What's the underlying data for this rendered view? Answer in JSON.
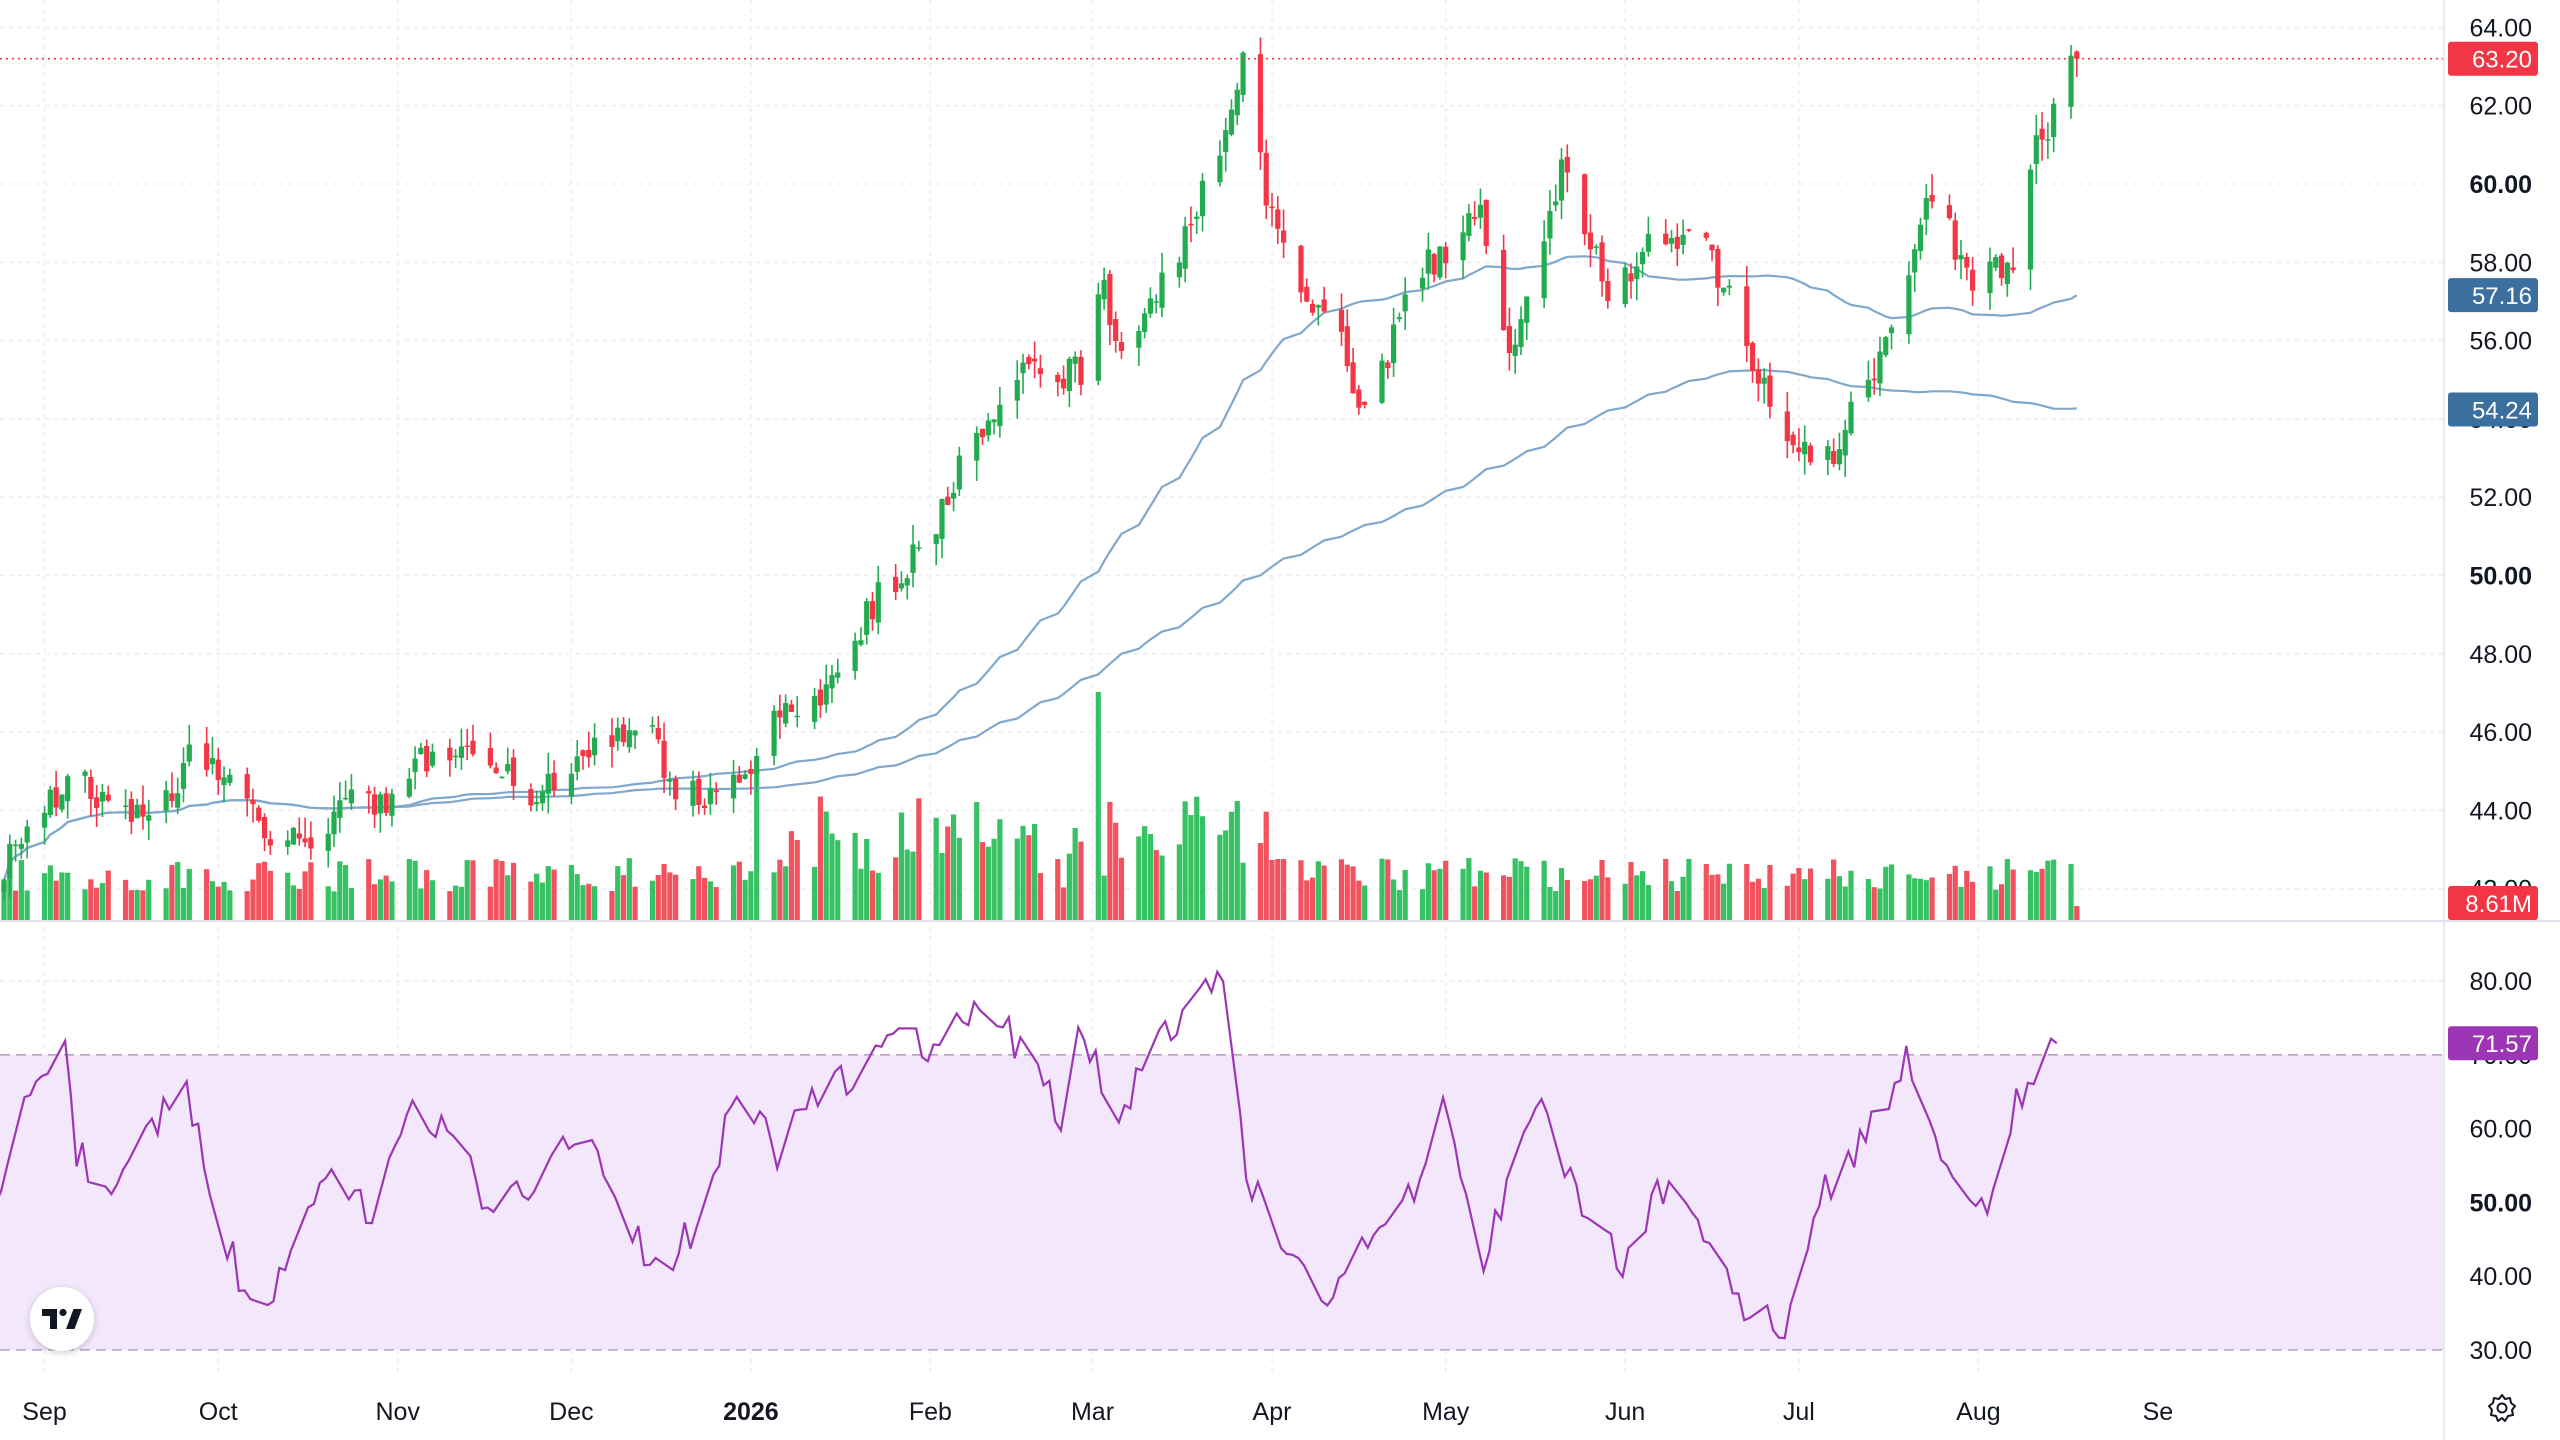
{
  "chart_data": {
    "type": "candlestick",
    "x_axis": {
      "labels": [
        "Sep",
        "Oct",
        "Nov",
        "Dec",
        "2026",
        "Feb",
        "Mar",
        "Apr",
        "May",
        "Jun",
        "Jul",
        "Aug",
        "Se"
      ],
      "bold_label": "2026"
    },
    "price_axis": {
      "ticks": [
        "64.00",
        "62.00",
        "60.00",
        "58.00",
        "56.00",
        "54.00",
        "52.00",
        "50.00",
        "48.00",
        "46.00",
        "44.00",
        "42.00"
      ],
      "bold_ticks": [
        "60.00",
        "50.00"
      ],
      "ylim": [
        41.2,
        64.7
      ],
      "grid": true
    },
    "price": {
      "last": 63.2,
      "last_label": "63.20",
      "description": "Daily OHLC candles, approx. one trading year (late Aug 2025 to mid Aug 2026). Close path anchors in data units:",
      "close_anchors": [
        [
          "2025-08-25",
          42.6
        ],
        [
          "2025-09-05",
          44.9
        ],
        [
          "2025-09-15",
          43.9
        ],
        [
          "2025-09-24",
          44.2
        ],
        [
          "2025-09-26",
          45.6
        ],
        [
          "2025-10-03",
          44.8
        ],
        [
          "2025-10-10",
          43.0
        ],
        [
          "2025-10-17",
          43.4
        ],
        [
          "2025-10-24",
          44.1
        ],
        [
          "2025-10-31",
          44.2
        ],
        [
          "2025-11-07",
          45.6
        ],
        [
          "2025-11-17",
          45.1
        ],
        [
          "2025-11-24",
          44.3
        ],
        [
          "2025-12-01",
          45.2
        ],
        [
          "2025-12-08",
          46.0
        ],
        [
          "2025-12-15",
          45.9
        ],
        [
          "2025-12-19",
          44.4
        ],
        [
          "2025-12-31",
          44.6
        ],
        [
          "2026-01-05",
          46.5
        ],
        [
          "2026-01-13",
          47.0
        ],
        [
          "2026-01-23",
          49.4
        ],
        [
          "2026-02-02",
          51.2
        ],
        [
          "2026-02-09",
          53.8
        ],
        [
          "2026-02-17",
          55.2
        ],
        [
          "2026-02-27",
          55.2
        ],
        [
          "2026-03-02",
          57.5
        ],
        [
          "2026-03-06",
          56.0
        ],
        [
          "2026-03-16",
          58.2
        ],
        [
          "2026-03-25",
          62.0
        ],
        [
          "2026-03-27",
          63.0
        ],
        [
          "2026-03-31",
          59.6
        ],
        [
          "2026-04-06",
          57.5
        ],
        [
          "2026-04-14",
          55.7
        ],
        [
          "2026-04-16",
          53.9
        ],
        [
          "2026-04-27",
          57.8
        ],
        [
          "2026-05-07",
          59.2
        ],
        [
          "2026-05-12",
          55.5
        ],
        [
          "2026-05-21",
          60.3
        ],
        [
          "2026-05-29",
          57.3
        ],
        [
          "2026-06-08",
          58.8
        ],
        [
          "2026-06-15",
          58.5
        ],
        [
          "2026-06-22",
          55.8
        ],
        [
          "2026-06-29",
          53.2
        ],
        [
          "2026-07-06",
          52.9
        ],
        [
          "2026-07-13",
          54.9
        ],
        [
          "2026-07-17",
          56.3
        ],
        [
          "2026-07-24",
          60.0
        ],
        [
          "2026-07-30",
          57.5
        ],
        [
          "2026-08-03",
          58.4
        ],
        [
          "2026-08-07",
          57.6
        ],
        [
          "2026-08-11",
          60.8
        ],
        [
          "2026-08-18",
          63.2
        ]
      ]
    },
    "moving_averages": [
      {
        "label": "57.16",
        "last_value": 57.16,
        "color": "#7fa8cc"
      },
      {
        "label": "54.24",
        "last_value": 54.24,
        "color": "#7fa8cc"
      }
    ],
    "volume": {
      "last_label": "8.61M",
      "description": "Volume histogram at the bottom of the price pane; spike near 2026-03-02",
      "notable": [
        [
          "2026-01-02",
          "high"
        ],
        [
          "2026-03-02",
          "max"
        ]
      ]
    },
    "rsi": {
      "last": 71.57,
      "last_label": "71.57",
      "ticks": [
        "80.00",
        "70.00",
        "60.00",
        "50.00",
        "40.00",
        "30.00"
      ],
      "bold_ticks": [
        "50.00"
      ],
      "ylim": [
        27,
        88
      ],
      "band": [
        30,
        70
      ],
      "line_color": "#9c36b5",
      "anchors": [
        [
          "2025-08-25",
          46
        ],
        [
          "2025-09-01",
          63
        ],
        [
          "2025-09-08",
          71
        ],
        [
          "2025-09-10",
          57
        ],
        [
          "2025-09-15",
          50
        ],
        [
          "2025-09-22",
          60
        ],
        [
          "2025-09-29",
          65
        ],
        [
          "2025-10-03",
          52
        ],
        [
          "2025-10-10",
          35
        ],
        [
          "2025-10-17",
          42
        ],
        [
          "2025-10-24",
          56
        ],
        [
          "2025-10-31",
          48
        ],
        [
          "2025-11-07",
          65
        ],
        [
          "2025-11-14",
          58
        ],
        [
          "2025-11-21",
          49
        ],
        [
          "2025-11-28",
          52
        ],
        [
          "2025-12-05",
          60
        ],
        [
          "2025-12-12",
          52
        ],
        [
          "2025-12-19",
          40
        ],
        [
          "2025-12-26",
          47
        ],
        [
          "2026-01-02",
          65
        ],
        [
          "2026-01-09",
          57
        ],
        [
          "2026-01-16",
          64
        ],
        [
          "2026-01-23",
          68
        ],
        [
          "2026-01-30",
          72
        ],
        [
          "2026-02-06",
          71
        ],
        [
          "2026-02-13",
          77
        ],
        [
          "2026-02-20",
          71
        ],
        [
          "2026-02-27",
          62
        ],
        [
          "2026-03-02",
          75
        ],
        [
          "2026-03-09",
          61
        ],
        [
          "2026-03-16",
          72
        ],
        [
          "2026-03-25",
          80
        ],
        [
          "2026-03-27",
          82
        ],
        [
          "2026-03-31",
          53
        ],
        [
          "2026-04-07",
          45
        ],
        [
          "2026-04-14",
          38
        ],
        [
          "2026-04-21",
          44
        ],
        [
          "2026-04-28",
          50
        ],
        [
          "2026-05-04",
          62
        ],
        [
          "2026-05-11",
          43
        ],
        [
          "2026-05-21",
          65
        ],
        [
          "2026-05-28",
          49
        ],
        [
          "2026-06-04",
          42
        ],
        [
          "2026-06-11",
          52
        ],
        [
          "2026-06-18",
          47
        ],
        [
          "2026-06-25",
          35
        ],
        [
          "2026-07-02",
          33
        ],
        [
          "2026-07-09",
          52
        ],
        [
          "2026-07-16",
          59
        ],
        [
          "2026-07-23",
          69
        ],
        [
          "2026-07-30",
          55
        ],
        [
          "2026-08-06",
          49
        ],
        [
          "2026-08-11",
          64
        ],
        [
          "2026-08-18",
          71.57
        ]
      ]
    },
    "colors": {
      "up": "#22ab4f",
      "down": "#f23645",
      "ma": "#7fa8cc",
      "ma_tag": "#3a6f9e",
      "rsi": "#9c36b5",
      "rsi_band": "#f3e7fc",
      "price_tag": "#f23645",
      "grid": "#eceef2"
    }
  }
}
